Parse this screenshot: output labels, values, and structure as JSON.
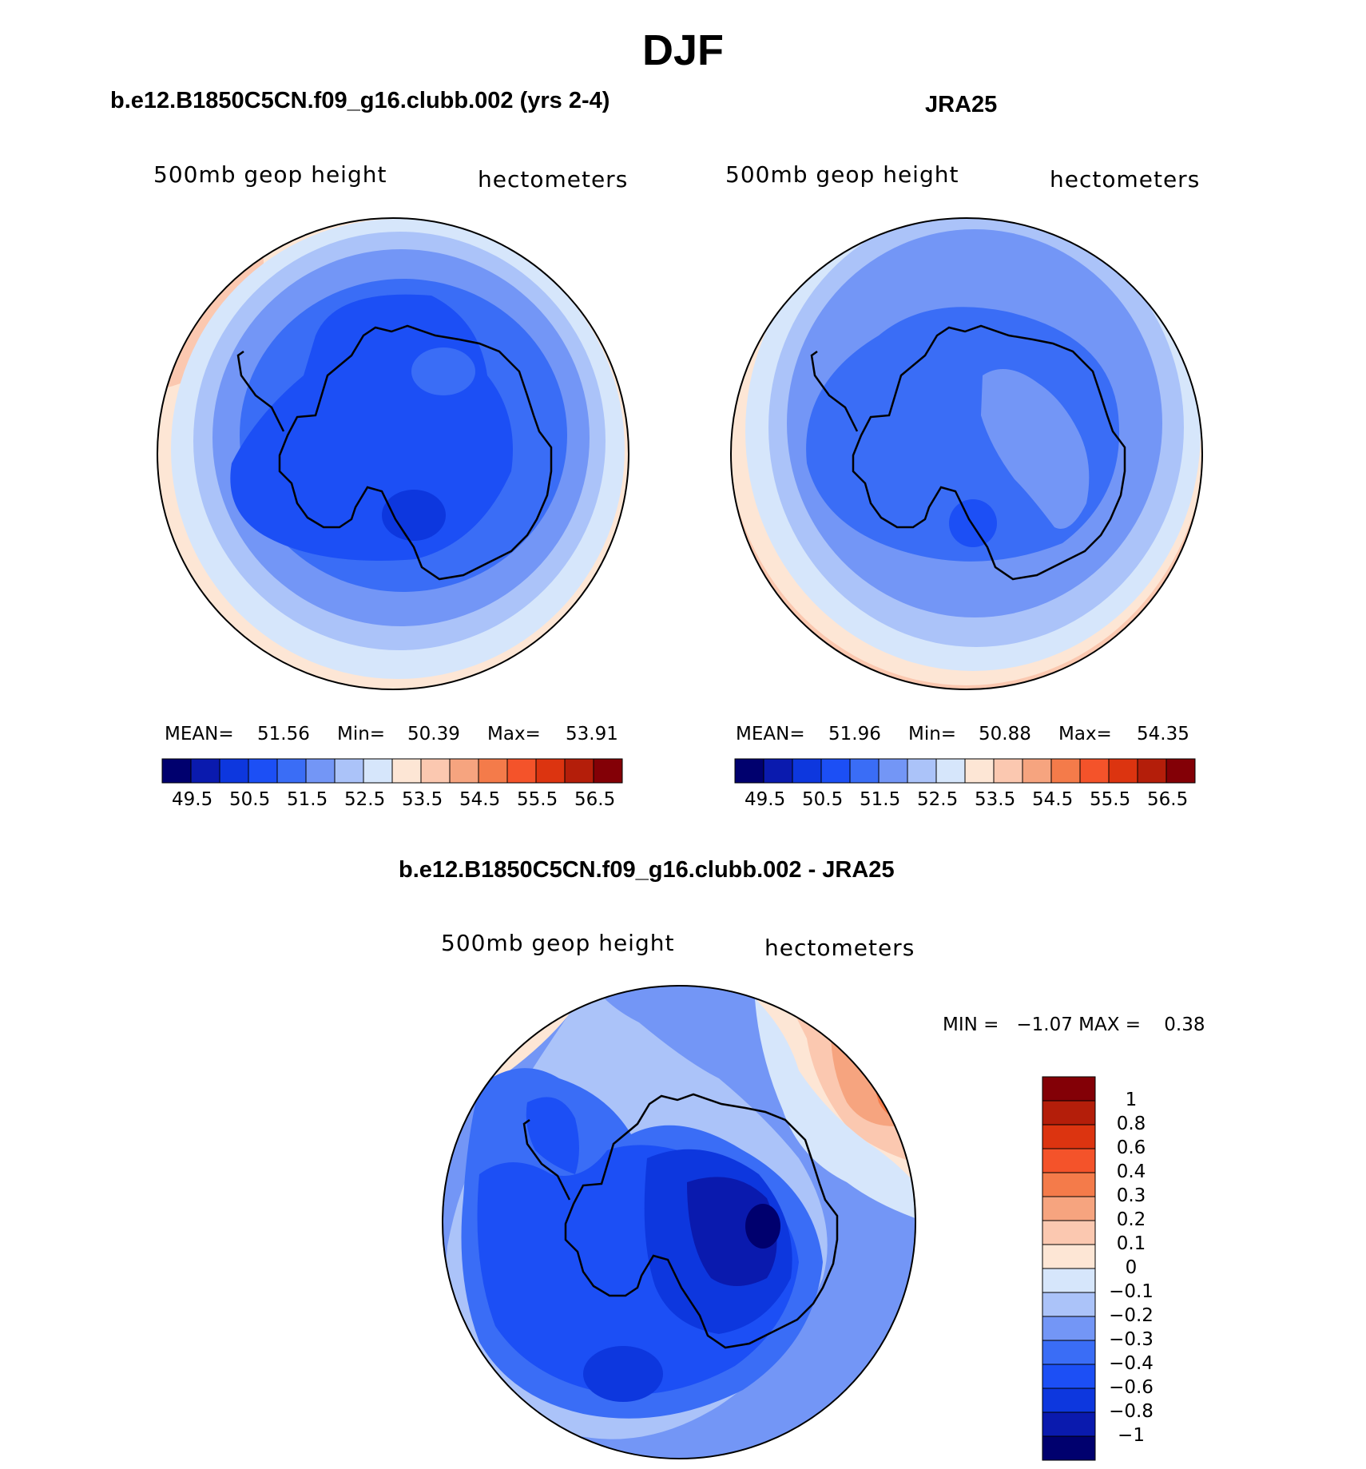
{
  "figure": {
    "title": "DJF"
  },
  "panels": {
    "model": {
      "title": "b.e12.B1850C5CN.f09_g16.clubb.002 (yrs 2-4)",
      "left_label": "500mb geop height",
      "right_label": "hectometers",
      "stats": {
        "mean_label": "MEAN=",
        "mean": "51.56",
        "min_label": "Min=",
        "min": "50.39",
        "max_label": "Max=",
        "max": "53.91"
      }
    },
    "obs": {
      "title": "JRA25",
      "left_label": "500mb geop height",
      "right_label": "hectometers",
      "stats": {
        "mean_label": "MEAN=",
        "mean": "51.96",
        "min_label": "Min=",
        "min": "50.88",
        "max_label": "Max=",
        "max": "54.35"
      }
    },
    "diff": {
      "title": "b.e12.B1850C5CN.f09_g16.clubb.002 - JRA25",
      "left_label": "500mb geop height",
      "right_label": "hectometers",
      "stats_text": "MIN =   −1.07 MAX =    0.38"
    }
  },
  "colorbars": {
    "abs": {
      "colors": [
        "#00006e",
        "#0a1aae",
        "#0d37de",
        "#1c4ff5",
        "#3a6df6",
        "#7396f6",
        "#abc3f9",
        "#d6e6fb",
        "#fde6d5",
        "#fbc8b0",
        "#f6a47f",
        "#f47b4a",
        "#f4532a",
        "#dc3410",
        "#b41e0a",
        "#830006"
      ],
      "ticks": [
        "49.5",
        "50.5",
        "51.5",
        "52.5",
        "53.5",
        "54.5",
        "55.5",
        "56.5"
      ]
    },
    "diff": {
      "colors": [
        "#00006e",
        "#0a1aae",
        "#0d37de",
        "#1c4ff5",
        "#3a6df6",
        "#7396f6",
        "#abc3f9",
        "#d6e6fb",
        "#fde6d5",
        "#fbc8b0",
        "#f6a47f",
        "#f47b4a",
        "#f4532a",
        "#dc3410",
        "#b41e0a",
        "#830006"
      ],
      "ticks": [
        "1",
        "0.8",
        "0.6",
        "0.4",
        "0.3",
        "0.2",
        "0.1",
        "0",
        "−0.1",
        "−0.2",
        "−0.3",
        "−0.4",
        "−0.6",
        "−0.8",
        "−1"
      ]
    }
  }
}
